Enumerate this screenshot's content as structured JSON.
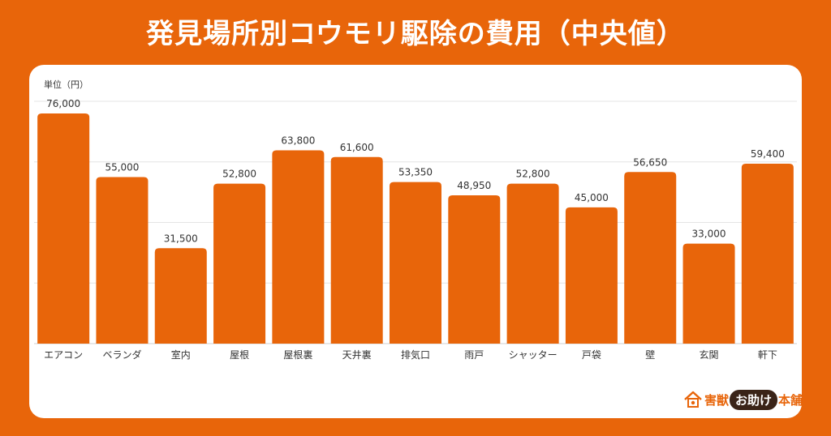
{
  "title": "発見場所別コウモリ駆除の費用（中央値）",
  "chart_data": {
    "type": "bar",
    "unit_label": "単位（円）",
    "categories": [
      "エアコン",
      "ベランダ",
      "室内",
      "屋根",
      "屋根裏",
      "天井裏",
      "排気口",
      "雨戸",
      "シャッター",
      "戸袋",
      "壁",
      "玄関",
      "軒下"
    ],
    "values": [
      76000,
      55000,
      31500,
      52800,
      63800,
      61600,
      53350,
      48950,
      52800,
      45000,
      56650,
      33000,
      59400
    ],
    "value_labels": [
      "76,000",
      "55,000",
      "31,500",
      "52,800",
      "63,800",
      "61,600",
      "53,350",
      "48,950",
      "52,800",
      "45,000",
      "56,650",
      "33,000",
      "59,400"
    ],
    "ylim": [
      0,
      80000
    ],
    "grid": true,
    "bar_color": "#e8650a"
  },
  "logo": {
    "part1": "害獣",
    "part2": "お助け",
    "part3": "本舗"
  },
  "colors": {
    "background": "#e8650a",
    "card": "#ffffff",
    "grid": "#e4e4e4",
    "text": "#333333"
  }
}
